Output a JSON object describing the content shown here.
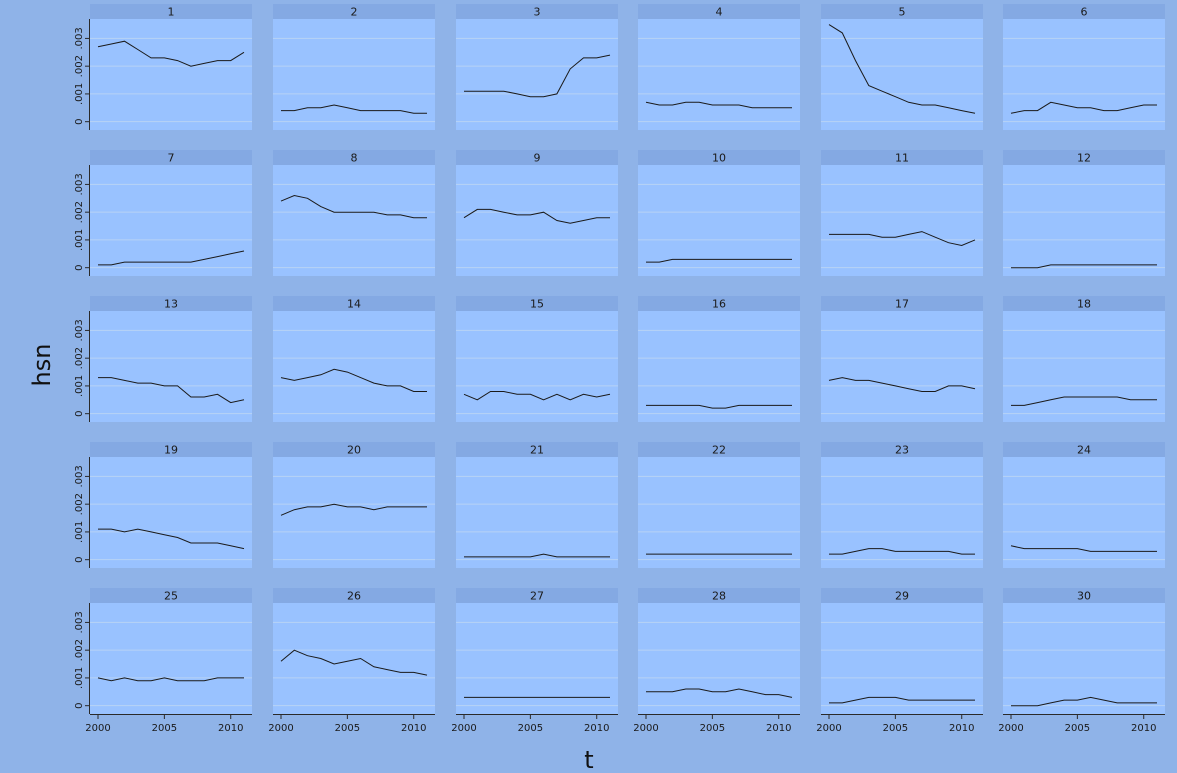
{
  "chart_data": {
    "type": "line",
    "layout": "small-multiples",
    "xlabel": "t",
    "ylabel": "hsn",
    "x": [
      2000,
      2001,
      2002,
      2003,
      2004,
      2005,
      2006,
      2007,
      2008,
      2009,
      2010,
      2011
    ],
    "xlim": [
      2000,
      2011
    ],
    "xticks": [
      2000,
      2005,
      2010
    ],
    "xtick_labels": [
      "2000",
      "2005",
      "2010"
    ],
    "ylim": [
      -0.0003,
      0.0037
    ],
    "yticks": [
      0,
      0.001,
      0.002,
      0.003
    ],
    "ytick_labels": [
      "0",
      ".001",
      ".002",
      ".003"
    ],
    "grid": true,
    "panels": [
      {
        "label": "1",
        "values": [
          0.0027,
          0.0028,
          0.0029,
          0.0026,
          0.0023,
          0.0023,
          0.0022,
          0.002,
          0.0021,
          0.0022,
          0.0022,
          0.0025
        ]
      },
      {
        "label": "2",
        "values": [
          0.0004,
          0.0004,
          0.0005,
          0.0005,
          0.0006,
          0.0005,
          0.0004,
          0.0004,
          0.0004,
          0.0004,
          0.0003,
          0.0003
        ]
      },
      {
        "label": "3",
        "values": [
          0.0011,
          0.0011,
          0.0011,
          0.0011,
          0.001,
          0.0009,
          0.0009,
          0.001,
          0.0019,
          0.0023,
          0.0023,
          0.0024
        ]
      },
      {
        "label": "4",
        "values": [
          0.0007,
          0.0006,
          0.0006,
          0.0007,
          0.0007,
          0.0006,
          0.0006,
          0.0006,
          0.0005,
          0.0005,
          0.0005,
          0.0005
        ]
      },
      {
        "label": "5",
        "values": [
          0.0035,
          0.0032,
          0.0022,
          0.0013,
          0.0011,
          0.0009,
          0.0007,
          0.0006,
          0.0006,
          0.0005,
          0.0004,
          0.0003
        ]
      },
      {
        "label": "6",
        "values": [
          0.0003,
          0.0004,
          0.0004,
          0.0007,
          0.0006,
          0.0005,
          0.0005,
          0.0004,
          0.0004,
          0.0005,
          0.0006,
          0.0006
        ]
      },
      {
        "label": "7",
        "values": [
          0.0001,
          0.0001,
          0.0002,
          0.0002,
          0.0002,
          0.0002,
          0.0002,
          0.0002,
          0.0003,
          0.0004,
          0.0005,
          0.0006
        ]
      },
      {
        "label": "8",
        "values": [
          0.0024,
          0.0026,
          0.0025,
          0.0022,
          0.002,
          0.002,
          0.002,
          0.002,
          0.0019,
          0.0019,
          0.0018,
          0.0018
        ]
      },
      {
        "label": "9",
        "values": [
          0.0018,
          0.0021,
          0.0021,
          0.002,
          0.0019,
          0.0019,
          0.002,
          0.0017,
          0.0016,
          0.0017,
          0.0018,
          0.0018
        ]
      },
      {
        "label": "10",
        "values": [
          0.0002,
          0.0002,
          0.0003,
          0.0003,
          0.0003,
          0.0003,
          0.0003,
          0.0003,
          0.0003,
          0.0003,
          0.0003,
          0.0003
        ]
      },
      {
        "label": "11",
        "values": [
          0.0012,
          0.0012,
          0.0012,
          0.0012,
          0.0011,
          0.0011,
          0.0012,
          0.0013,
          0.0011,
          0.0009,
          0.0008,
          0.001
        ]
      },
      {
        "label": "12",
        "values": [
          0.0,
          0.0,
          0.0,
          0.0001,
          0.0001,
          0.0001,
          0.0001,
          0.0001,
          0.0001,
          0.0001,
          0.0001,
          0.0001
        ]
      },
      {
        "label": "13",
        "values": [
          0.0013,
          0.0013,
          0.0012,
          0.0011,
          0.0011,
          0.001,
          0.001,
          0.0006,
          0.0006,
          0.0007,
          0.0004,
          0.0005
        ]
      },
      {
        "label": "14",
        "values": [
          0.0013,
          0.0012,
          0.0013,
          0.0014,
          0.0016,
          0.0015,
          0.0013,
          0.0011,
          0.001,
          0.001,
          0.0008,
          0.0008
        ]
      },
      {
        "label": "15",
        "values": [
          0.0007,
          0.0005,
          0.0008,
          0.0008,
          0.0007,
          0.0007,
          0.0005,
          0.0007,
          0.0005,
          0.0007,
          0.0006,
          0.0007
        ]
      },
      {
        "label": "16",
        "values": [
          0.0003,
          0.0003,
          0.0003,
          0.0003,
          0.0003,
          0.0002,
          0.0002,
          0.0003,
          0.0003,
          0.0003,
          0.0003,
          0.0003
        ]
      },
      {
        "label": "17",
        "values": [
          0.0012,
          0.0013,
          0.0012,
          0.0012,
          0.0011,
          0.001,
          0.0009,
          0.0008,
          0.0008,
          0.001,
          0.001,
          0.0009
        ]
      },
      {
        "label": "18",
        "values": [
          0.0003,
          0.0003,
          0.0004,
          0.0005,
          0.0006,
          0.0006,
          0.0006,
          0.0006,
          0.0006,
          0.0005,
          0.0005,
          0.0005
        ]
      },
      {
        "label": "19",
        "values": [
          0.0011,
          0.0011,
          0.001,
          0.0011,
          0.001,
          0.0009,
          0.0008,
          0.0006,
          0.0006,
          0.0006,
          0.0005,
          0.0004
        ]
      },
      {
        "label": "20",
        "values": [
          0.0016,
          0.0018,
          0.0019,
          0.0019,
          0.002,
          0.0019,
          0.0019,
          0.0018,
          0.0019,
          0.0019,
          0.0019,
          0.0019
        ]
      },
      {
        "label": "21",
        "values": [
          0.0001,
          0.0001,
          0.0001,
          0.0001,
          0.0001,
          0.0001,
          0.0002,
          0.0001,
          0.0001,
          0.0001,
          0.0001,
          0.0001
        ]
      },
      {
        "label": "22",
        "values": [
          0.0002,
          0.0002,
          0.0002,
          0.0002,
          0.0002,
          0.0002,
          0.0002,
          0.0002,
          0.0002,
          0.0002,
          0.0002,
          0.0002
        ]
      },
      {
        "label": "23",
        "values": [
          0.0002,
          0.0002,
          0.0003,
          0.0004,
          0.0004,
          0.0003,
          0.0003,
          0.0003,
          0.0003,
          0.0003,
          0.0002,
          0.0002
        ]
      },
      {
        "label": "24",
        "values": [
          0.0005,
          0.0004,
          0.0004,
          0.0004,
          0.0004,
          0.0004,
          0.0003,
          0.0003,
          0.0003,
          0.0003,
          0.0003,
          0.0003
        ]
      },
      {
        "label": "25",
        "values": [
          0.001,
          0.0009,
          0.001,
          0.0009,
          0.0009,
          0.001,
          0.0009,
          0.0009,
          0.0009,
          0.001,
          0.001,
          0.001
        ]
      },
      {
        "label": "26",
        "values": [
          0.0016,
          0.002,
          0.0018,
          0.0017,
          0.0015,
          0.0016,
          0.0017,
          0.0014,
          0.0013,
          0.0012,
          0.0012,
          0.0011
        ]
      },
      {
        "label": "27",
        "values": [
          0.0003,
          0.0003,
          0.0003,
          0.0003,
          0.0003,
          0.0003,
          0.0003,
          0.0003,
          0.0003,
          0.0003,
          0.0003,
          0.0003
        ]
      },
      {
        "label": "28",
        "values": [
          0.0005,
          0.0005,
          0.0005,
          0.0006,
          0.0006,
          0.0005,
          0.0005,
          0.0006,
          0.0005,
          0.0004,
          0.0004,
          0.0003
        ]
      },
      {
        "label": "29",
        "values": [
          0.0001,
          0.0001,
          0.0002,
          0.0003,
          0.0003,
          0.0003,
          0.0002,
          0.0002,
          0.0002,
          0.0002,
          0.0002,
          0.0002
        ]
      },
      {
        "label": "30",
        "values": [
          0.0,
          0.0,
          0.0,
          0.0001,
          0.0002,
          0.0002,
          0.0003,
          0.0002,
          0.0001,
          0.0001,
          0.0001,
          0.0001
        ]
      }
    ]
  },
  "colors": {
    "background": "#8fb3e8",
    "panel": "#99c2ff",
    "strip": "#84a9e3",
    "line": "#1a1a1a",
    "grid": "#b9d3f5"
  }
}
